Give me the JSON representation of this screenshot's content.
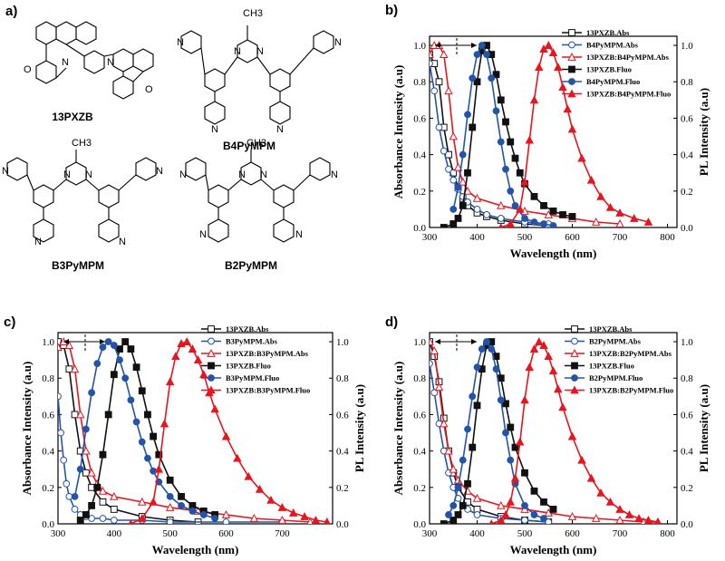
{
  "panel_a": {
    "label": "a)",
    "molecules": [
      {
        "name": "13PXZB",
        "atoms": [
          "N",
          "N",
          "O",
          "O"
        ]
      },
      {
        "name": "B4PyMPM",
        "atoms": [
          "CH3",
          "N",
          "N",
          "N",
          "N",
          "N",
          "N"
        ]
      },
      {
        "name": "B3PyMPM",
        "atoms": [
          "CH3",
          "N",
          "N",
          "N",
          "N",
          "N",
          "N"
        ]
      },
      {
        "name": "B2PyMPM",
        "atoms": [
          "CH3",
          "N",
          "N",
          "N",
          "N",
          "N",
          "N"
        ]
      }
    ]
  },
  "colors": {
    "black": "#111111",
    "blue": "#2255aa",
    "red": "#e8141e"
  },
  "chart_data": [
    {
      "panel_label": "b)",
      "type": "line",
      "xlabel": "Wavelength (nm)",
      "ylabel_left": "Absorbance Intensity (a.u)",
      "ylabel_right": "PL Intensity (a.u)",
      "xlim": [
        300,
        820
      ],
      "ylim": [
        0,
        1.05
      ],
      "xticks": [
        300,
        400,
        500,
        600,
        700,
        800
      ],
      "yticks": [
        0.0,
        0.2,
        0.4,
        0.6,
        0.8,
        1.0
      ],
      "tick_labels_left": [
        "0.0",
        "0.2",
        "0.4",
        "0.6",
        "0.8",
        "1.0"
      ],
      "tick_labels_right": [
        "0.0",
        "0.2",
        "0.4",
        "0.6",
        "0.8",
        "1.0"
      ],
      "tick_labels_x": [
        "300",
        "400",
        "500",
        "600",
        "700",
        "800"
      ],
      "legend_placement": "top-right",
      "series": [
        {
          "name": "13PXZB.Abs",
          "color": "black",
          "marker": "square-open",
          "x": [
            300,
            310,
            320,
            330,
            340,
            350,
            360,
            370,
            380,
            400,
            420,
            450,
            500,
            550
          ],
          "y": [
            0.95,
            0.9,
            0.8,
            0.55,
            0.4,
            0.3,
            0.22,
            0.16,
            0.12,
            0.08,
            0.06,
            0.04,
            0.02,
            0.01
          ]
        },
        {
          "name": "B4PyMPM.Abs",
          "color": "blue",
          "marker": "circle-open",
          "x": [
            300,
            310,
            320,
            330,
            340,
            350,
            360,
            370,
            380,
            400,
            420,
            450,
            500,
            550
          ],
          "y": [
            0.9,
            0.75,
            0.55,
            0.42,
            0.32,
            0.26,
            0.21,
            0.17,
            0.14,
            0.1,
            0.07,
            0.05,
            0.03,
            0.02
          ]
        },
        {
          "name": "13PXZB:B4PyMPM.Abs",
          "color": "red",
          "marker": "triangle-open",
          "x": [
            300,
            310,
            320,
            330,
            340,
            350,
            360,
            370,
            380,
            400,
            450,
            500,
            550,
            600,
            650,
            700
          ],
          "y": [
            0.95,
            1.0,
            1.0,
            0.95,
            0.75,
            0.5,
            0.33,
            0.25,
            0.2,
            0.16,
            0.12,
            0.09,
            0.07,
            0.05,
            0.03,
            0.02
          ]
        },
        {
          "name": "13PXZB.Fluo",
          "color": "black",
          "marker": "square-filled",
          "x": [
            330,
            350,
            360,
            370,
            380,
            390,
            400,
            410,
            420,
            430,
            440,
            450,
            460,
            470,
            480,
            490,
            500,
            520,
            540,
            560,
            580,
            600
          ],
          "y": [
            0.0,
            0.02,
            0.05,
            0.12,
            0.3,
            0.55,
            0.8,
            0.97,
            1.0,
            0.95,
            0.84,
            0.7,
            0.58,
            0.47,
            0.38,
            0.3,
            0.24,
            0.17,
            0.12,
            0.09,
            0.07,
            0.06
          ]
        },
        {
          "name": "B4PyMPM.Fluo",
          "color": "blue",
          "marker": "circle-filled",
          "x": [
            350,
            360,
            370,
            380,
            390,
            400,
            410,
            420,
            430,
            440,
            450,
            460,
            470,
            480,
            500,
            520,
            540,
            560
          ],
          "y": [
            0.1,
            0.22,
            0.4,
            0.62,
            0.82,
            0.95,
            1.0,
            0.95,
            0.82,
            0.64,
            0.47,
            0.32,
            0.2,
            0.12,
            0.05,
            0.03,
            0.02,
            0.01
          ]
        },
        {
          "name": "13PXZB:B4PyMPM.Fluo",
          "color": "red",
          "marker": "triangle-filled",
          "x": [
            450,
            470,
            490,
            500,
            510,
            520,
            530,
            540,
            550,
            560,
            570,
            580,
            590,
            600,
            620,
            640,
            660,
            680,
            700,
            730,
            760
          ],
          "y": [
            0.0,
            0.02,
            0.1,
            0.25,
            0.48,
            0.7,
            0.88,
            0.98,
            1.0,
            0.96,
            0.88,
            0.77,
            0.65,
            0.54,
            0.38,
            0.26,
            0.17,
            0.11,
            0.08,
            0.05,
            0.03
          ]
        }
      ],
      "annotation": "double-headed arrow with dashed marker"
    },
    {
      "panel_label": "c)",
      "type": "line",
      "xlabel": "Wavelength (nm)",
      "ylabel_left": "Absorbance Intensity (a.u)",
      "ylabel_right": "PL Intensity (a.u)",
      "xlim": [
        300,
        790
      ],
      "ylim": [
        0,
        1.05
      ],
      "xticks": [
        300,
        400,
        500,
        600,
        700
      ],
      "yticks": [
        0.0,
        0.2,
        0.4,
        0.6,
        0.8,
        1.0
      ],
      "tick_labels_left": [
        "0.0",
        "0.2",
        "0.4",
        "0.6",
        "0.8",
        "1.0"
      ],
      "tick_labels_right": [
        "0.0",
        "0.2",
        "0.4",
        "0.6",
        "0.8",
        "1.0"
      ],
      "tick_labels_x": [
        "300",
        "400",
        "500",
        "600",
        "700"
      ],
      "legend_placement": "top-right",
      "series": [
        {
          "name": "13PXZB.Abs",
          "color": "black",
          "marker": "square-open",
          "x": [
            300,
            310,
            320,
            330,
            340,
            350,
            360,
            380,
            400,
            450,
            500,
            550
          ],
          "y": [
            1.0,
            0.98,
            0.85,
            0.6,
            0.4,
            0.28,
            0.2,
            0.12,
            0.08,
            0.04,
            0.02,
            0.01
          ]
        },
        {
          "name": "B3PyMPM.Abs",
          "color": "blue",
          "marker": "circle-open",
          "x": [
            300,
            305,
            310,
            315,
            320,
            330,
            340,
            350,
            360,
            380,
            400,
            450,
            500,
            600,
            700
          ],
          "y": [
            0.7,
            0.5,
            0.35,
            0.22,
            0.15,
            0.08,
            0.05,
            0.04,
            0.03,
            0.03,
            0.02,
            0.02,
            0.01,
            0.01,
            0.01
          ]
        },
        {
          "name": "13PXZB:B3PyMPM.Abs",
          "color": "red",
          "marker": "triangle-open",
          "x": [
            300,
            310,
            320,
            330,
            340,
            350,
            360,
            370,
            380,
            400,
            450,
            500,
            550,
            600,
            650,
            700,
            750
          ],
          "y": [
            0.97,
            1.0,
            0.98,
            0.85,
            0.6,
            0.4,
            0.28,
            0.22,
            0.18,
            0.15,
            0.12,
            0.09,
            0.07,
            0.05,
            0.03,
            0.02,
            0.01
          ]
        },
        {
          "name": "13PXZB.Fluo",
          "color": "black",
          "marker": "square-filled",
          "x": [
            340,
            350,
            360,
            370,
            380,
            390,
            400,
            410,
            420,
            430,
            440,
            450,
            460,
            470,
            480,
            500,
            520,
            540,
            560,
            580
          ],
          "y": [
            0.02,
            0.05,
            0.1,
            0.2,
            0.38,
            0.6,
            0.82,
            0.96,
            1.0,
            0.96,
            0.86,
            0.73,
            0.6,
            0.48,
            0.38,
            0.24,
            0.15,
            0.1,
            0.07,
            0.05
          ]
        },
        {
          "name": "B3PyMPM.Fluo",
          "color": "blue",
          "marker": "circle-filled",
          "x": [
            330,
            340,
            350,
            360,
            370,
            380,
            390,
            400,
            410,
            420,
            430,
            440,
            450,
            460,
            470,
            480,
            500,
            520,
            540,
            560,
            580
          ],
          "y": [
            0.15,
            0.3,
            0.52,
            0.72,
            0.88,
            0.97,
            1.0,
            0.98,
            0.9,
            0.8,
            0.68,
            0.56,
            0.45,
            0.36,
            0.29,
            0.23,
            0.15,
            0.1,
            0.07,
            0.05,
            0.03
          ]
        },
        {
          "name": "13PXZB:B3PyMPM.Fluo",
          "color": "red",
          "marker": "triangle-filled",
          "x": [
            430,
            450,
            470,
            480,
            490,
            500,
            510,
            520,
            530,
            540,
            550,
            560,
            570,
            580,
            600,
            620,
            640,
            660,
            680,
            700,
            720,
            740,
            760,
            780
          ],
          "y": [
            0.0,
            0.03,
            0.12,
            0.3,
            0.55,
            0.78,
            0.92,
            0.99,
            1.0,
            0.96,
            0.9,
            0.82,
            0.72,
            0.63,
            0.48,
            0.36,
            0.26,
            0.19,
            0.13,
            0.09,
            0.06,
            0.04,
            0.02,
            0.01
          ]
        }
      ],
      "annotation": "double-headed arrow with dashed marker"
    },
    {
      "panel_label": "d)",
      "type": "line",
      "xlabel": "Wavelength (nm)",
      "ylabel_left": "Absorbance Intensity (a.u)",
      "ylabel_right": "PL Intensity (a.u)",
      "xlim": [
        300,
        820
      ],
      "ylim": [
        0,
        1.05
      ],
      "xticks": [
        300,
        400,
        500,
        600,
        700,
        800
      ],
      "yticks": [
        0.0,
        0.2,
        0.4,
        0.6,
        0.8,
        1.0
      ],
      "tick_labels_left": [
        "0.0",
        "0.2",
        "0.4",
        "0.6",
        "0.8",
        "1.0"
      ],
      "tick_labels_right": [
        "0.0",
        "0.2",
        "0.4",
        "0.6",
        "0.8",
        "1.0"
      ],
      "tick_labels_x": [
        "300",
        "400",
        "500",
        "600",
        "700",
        "800"
      ],
      "legend_placement": "top-right",
      "series": [
        {
          "name": "13PXZB.Abs",
          "color": "black",
          "marker": "square-open",
          "x": [
            300,
            310,
            320,
            330,
            340,
            350,
            360,
            380,
            400,
            450,
            500,
            550
          ],
          "y": [
            1.0,
            0.92,
            0.78,
            0.58,
            0.4,
            0.28,
            0.2,
            0.12,
            0.08,
            0.04,
            0.02,
            0.01
          ]
        },
        {
          "name": "B2PyMPM.Abs",
          "color": "blue",
          "marker": "circle-open",
          "x": [
            300,
            310,
            320,
            330,
            340,
            350,
            360,
            370,
            380,
            400,
            450,
            500,
            550
          ],
          "y": [
            0.88,
            0.72,
            0.55,
            0.4,
            0.28,
            0.2,
            0.14,
            0.1,
            0.08,
            0.05,
            0.03,
            0.02,
            0.01
          ]
        },
        {
          "name": "13PXZB:B2PyMPM.Abs",
          "color": "red",
          "marker": "triangle-open",
          "x": [
            300,
            310,
            320,
            330,
            340,
            350,
            360,
            380,
            400,
            450,
            500,
            550,
            600,
            650,
            700,
            750,
            780
          ],
          "y": [
            1.0,
            0.95,
            0.75,
            0.55,
            0.4,
            0.3,
            0.24,
            0.18,
            0.14,
            0.1,
            0.08,
            0.06,
            0.04,
            0.03,
            0.02,
            0.01,
            0.01
          ]
        },
        {
          "name": "13PXZB.Fluo",
          "color": "black",
          "marker": "square-filled",
          "x": [
            330,
            350,
            360,
            370,
            380,
            390,
            400,
            410,
            420,
            430,
            440,
            450,
            460,
            470,
            480,
            500,
            520,
            540,
            560
          ],
          "y": [
            0.0,
            0.02,
            0.05,
            0.1,
            0.22,
            0.42,
            0.65,
            0.85,
            0.98,
            1.0,
            0.92,
            0.8,
            0.66,
            0.53,
            0.42,
            0.28,
            0.18,
            0.12,
            0.08
          ]
        },
        {
          "name": "B2PyMPM.Fluo",
          "color": "blue",
          "marker": "circle-filled",
          "x": [
            340,
            350,
            360,
            370,
            380,
            390,
            400,
            410,
            420,
            430,
            440,
            450,
            460,
            470,
            480,
            500,
            520,
            540
          ],
          "y": [
            0.05,
            0.1,
            0.2,
            0.35,
            0.52,
            0.7,
            0.86,
            0.96,
            1.0,
            0.96,
            0.85,
            0.68,
            0.5,
            0.35,
            0.22,
            0.1,
            0.05,
            0.03
          ]
        },
        {
          "name": "13PXZB:B2PyMPM.Fluo",
          "color": "red",
          "marker": "triangle-filled",
          "x": [
            430,
            450,
            460,
            470,
            480,
            490,
            500,
            510,
            520,
            530,
            540,
            550,
            560,
            570,
            580,
            600,
            620,
            640,
            660,
            680,
            700,
            720,
            740,
            760,
            780
          ],
          "y": [
            0.0,
            0.02,
            0.05,
            0.12,
            0.25,
            0.45,
            0.68,
            0.86,
            0.96,
            1.0,
            0.98,
            0.92,
            0.84,
            0.74,
            0.64,
            0.48,
            0.35,
            0.25,
            0.17,
            0.12,
            0.08,
            0.05,
            0.03,
            0.02,
            0.01
          ]
        }
      ],
      "annotation": "double-headed arrow with dashed marker"
    }
  ]
}
